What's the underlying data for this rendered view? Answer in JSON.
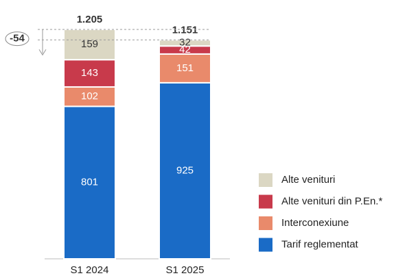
{
  "chart_data": {
    "type": "stacked_bar",
    "categories": [
      "S1 2024",
      "S1 2025"
    ],
    "series": [
      {
        "name": "Tarif reglementat",
        "color": "#1a6bc6",
        "values": [
          801,
          925
        ]
      },
      {
        "name": "Interconexiune",
        "color": "#e98a6b",
        "values": [
          102,
          151
        ]
      },
      {
        "name": "Alte venituri din P.En.*",
        "color": "#c83a4b",
        "values": [
          143,
          42
        ]
      },
      {
        "name": "Alte venituri",
        "color": "#dbd7c3",
        "values": [
          159,
          32
        ]
      }
    ],
    "totals": {
      "values": [
        1205,
        1151
      ],
      "value_labels": [
        "1.205",
        "1.151"
      ]
    },
    "difference": -54
  }
}
